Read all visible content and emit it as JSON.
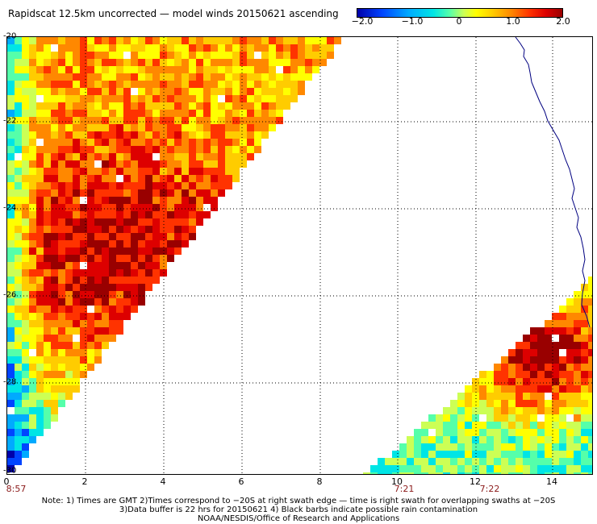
{
  "title": "Rapidscat 12.5km uncorrected — model winds 20150621 ascending",
  "colorbar": {
    "ticks": [
      "−2.0",
      "−1.0",
      "0",
      "1.0",
      "2.0"
    ],
    "min": -2.0,
    "max": 2.0
  },
  "axes": {
    "lat_ticks": [
      "-20",
      "-22",
      "-24",
      "-26",
      "-28",
      "-30"
    ],
    "lon_ticks": [
      "0",
      "2",
      "4",
      "6",
      "8",
      "10",
      "12",
      "14"
    ],
    "lat_range": [
      -30,
      -20
    ],
    "lon_range": [
      0,
      15
    ]
  },
  "times": [
    "8:57",
    "7:21",
    "7:22"
  ],
  "notes": [
    "Note: 1) Times are GMT 2)Times correspond to −20S at right swath edge — time is right swath for overlapping swaths at −20S",
    "3)Data buffer is 22 hrs for 20150621 4) Black barbs indicate possible rain contamination",
    "NOAA/NESDIS/Office of Research and Applications"
  ]
}
